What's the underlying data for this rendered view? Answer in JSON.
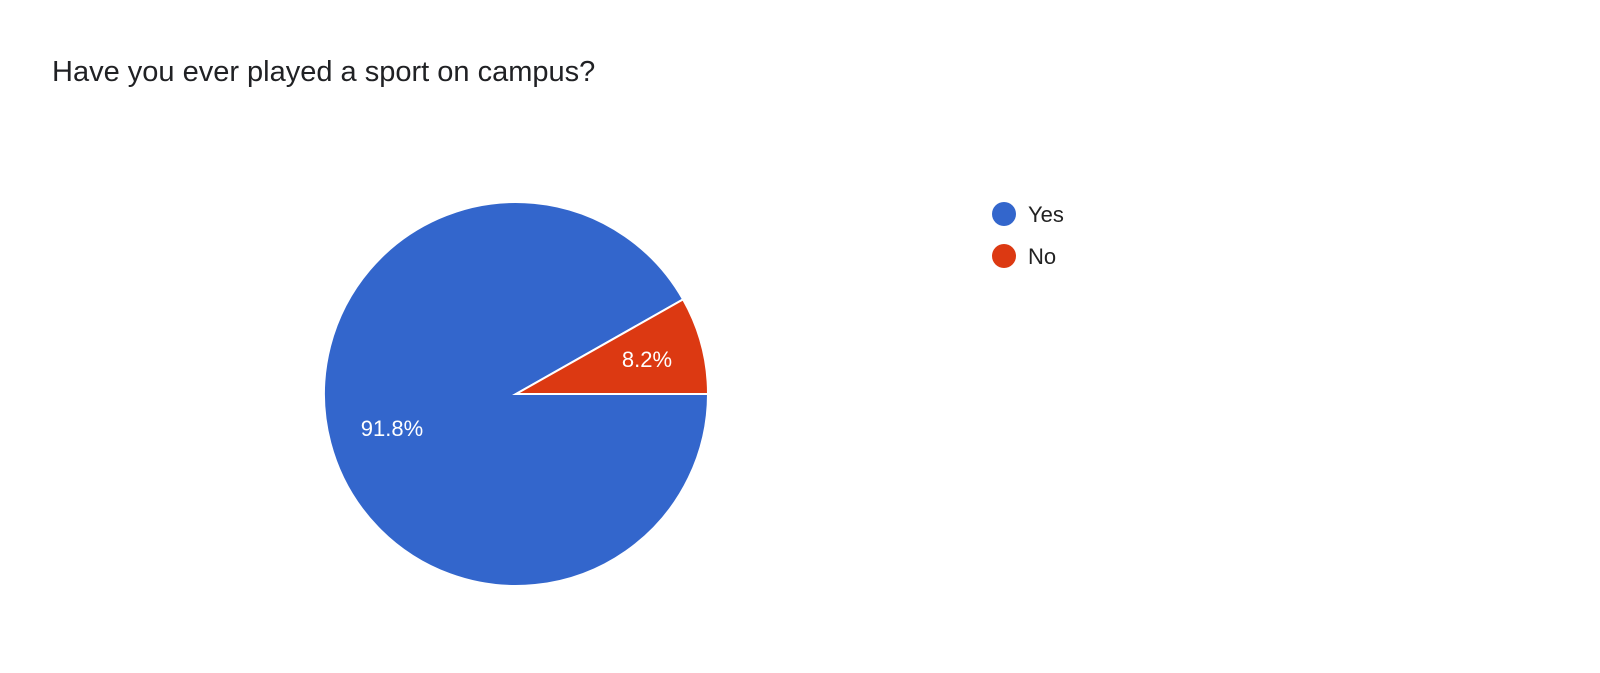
{
  "chart_data": {
    "type": "pie",
    "title": "Have you ever played a sport on campus?",
    "categories": [
      "Yes",
      "No"
    ],
    "values": [
      91.8,
      8.2
    ],
    "labels": [
      "91.8%",
      "8.2%"
    ],
    "colors": [
      "#3366cc",
      "#dc3912"
    ],
    "legend_position": "right"
  }
}
